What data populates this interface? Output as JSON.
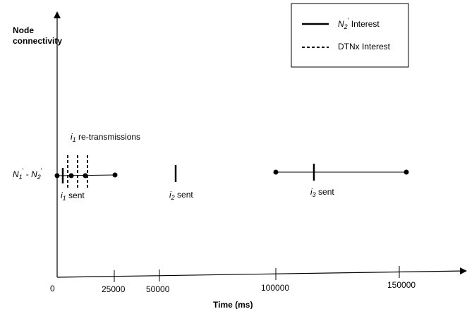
{
  "y_axis_label": {
    "line1": "Node",
    "line2": "connectivity"
  },
  "x_axis_label": "Time (ms)",
  "row_label": {
    "n1": "N",
    "n1_sub": "1",
    "n1_sup": "'",
    "dash": " - ",
    "n2": "N",
    "n2_sub": "2",
    "n2_sup": "'"
  },
  "legend": {
    "n2_interest": {
      "symbol": "N",
      "sub": "2",
      "sup": "'",
      "text": " Interest"
    },
    "dtnx_interest": {
      "text": "DTNx Interest"
    }
  },
  "x_ticks": [
    "0",
    "25000",
    "50000",
    "100000",
    "150000"
  ],
  "annotations": {
    "retransmissions": {
      "symbol": "i",
      "sub": "1",
      "text": " re-transmissions"
    },
    "i1_sent": {
      "symbol": "i",
      "sub": "1",
      "text": " sent"
    },
    "i2_sent": {
      "symbol": "i",
      "sub": "2",
      "text": " sent"
    },
    "i3_sent": {
      "symbol": "i",
      "sub": "3",
      "text": " sent"
    }
  }
}
